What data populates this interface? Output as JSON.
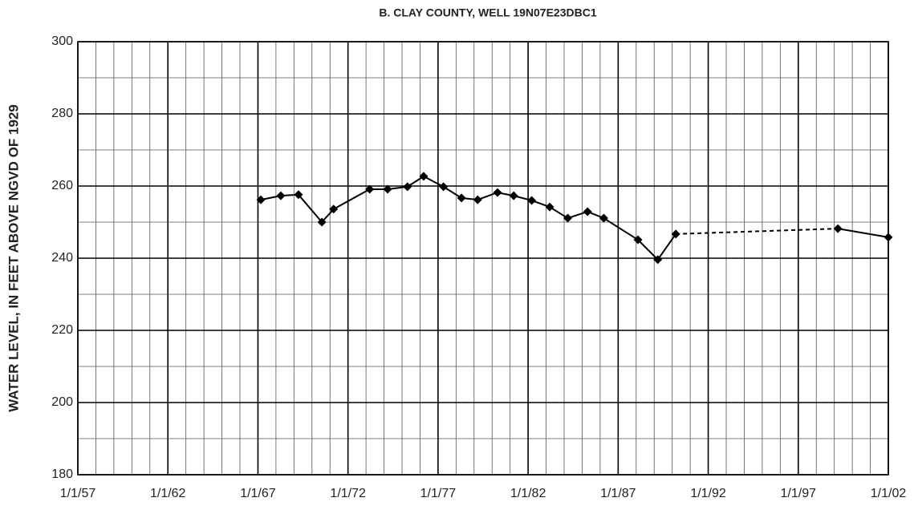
{
  "chart_data": {
    "type": "line",
    "title": "B. CLAY COUNTY, WELL 19N07E23DBC1",
    "y_label": "WATER LEVEL, IN FEET ABOVE NGVD OF 1929",
    "x": [
      1967.16,
      1968.27,
      1969.25,
      1970.55,
      1971.2,
      1973.2,
      1974.2,
      1975.3,
      1976.2,
      1977.3,
      1978.3,
      1979.2,
      1980.3,
      1981.2,
      1982.2,
      1983.2,
      1984.2,
      1985.3,
      1986.2,
      1988.1,
      1989.2,
      1990.2,
      1999.2,
      2002.0
    ],
    "series": [
      {
        "color": "#000000",
        "values": [
          256.2,
          257.3,
          257.6,
          250.0,
          253.6,
          259.1,
          259.1,
          259.8,
          262.7,
          259.8,
          256.7,
          256.2,
          258.2,
          257.3,
          256.0,
          254.2,
          251.1,
          252.9,
          251.1,
          245.1,
          239.6,
          246.7,
          248.2,
          245.8
        ],
        "line_styles": [
          "solid",
          "solid",
          "solid",
          "solid",
          "solid",
          "solid",
          "solid",
          "solid",
          "solid",
          "solid",
          "solid",
          "solid",
          "solid",
          "solid",
          "solid",
          "solid",
          "solid",
          "solid",
          "solid",
          "solid",
          "solid",
          "dashed",
          "solid"
        ]
      }
    ],
    "xlim": [
      1957,
      2002
    ],
    "xticks": [
      {
        "value": 1957,
        "label": "1/1/57"
      },
      {
        "value": 1962,
        "label": "1/1/62"
      },
      {
        "value": 1967,
        "label": "1/1/67"
      },
      {
        "value": 1972,
        "label": "1/1/72"
      },
      {
        "value": 1977,
        "label": "1/1/77"
      },
      {
        "value": 1982,
        "label": "1/1/82"
      },
      {
        "value": 1987,
        "label": "1/1/87"
      },
      {
        "value": 1992,
        "label": "1/1/92"
      },
      {
        "value": 1997,
        "label": "1/1/97"
      },
      {
        "value": 2002,
        "label": "1/1/02"
      }
    ],
    "ylim": [
      180,
      300
    ],
    "yticks": [
      180,
      200,
      220,
      240,
      260,
      280,
      300
    ],
    "grid": true
  }
}
